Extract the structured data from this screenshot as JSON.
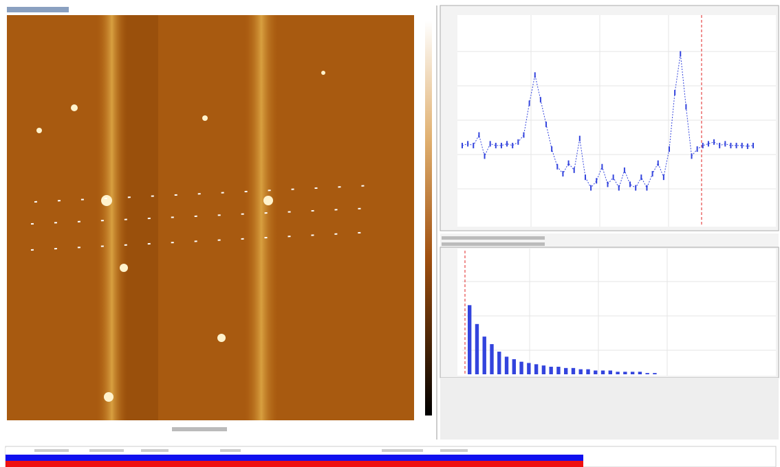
{
  "profile": {
    "type": "line",
    "color": "#3344dd",
    "ylim": [
      -2,
      4
    ],
    "values": [
      0.3,
      0.35,
      0.3,
      0.6,
      0.0,
      0.35,
      0.3,
      0.3,
      0.35,
      0.3,
      0.4,
      0.6,
      1.5,
      2.3,
      1.6,
      0.9,
      0.2,
      -0.3,
      -0.5,
      -0.2,
      -0.4,
      0.5,
      -0.6,
      -0.9,
      -0.7,
      -0.3,
      -0.8,
      -0.6,
      -0.9,
      -0.4,
      -0.8,
      -0.9,
      -0.6,
      -0.9,
      -0.5,
      -0.2,
      -0.6,
      0.2,
      1.8,
      2.9,
      1.4,
      0.0,
      0.2,
      0.3,
      0.35,
      0.4,
      0.3,
      0.35,
      0.3,
      0.3,
      0.3,
      0.28,
      0.3
    ]
  },
  "histogram": {
    "type": "bar",
    "color": "#3344dd",
    "ylim": [
      0,
      100
    ],
    "values": [
      55,
      40,
      30,
      24,
      18,
      14,
      12,
      10,
      9,
      8,
      7,
      6,
      6,
      5,
      5,
      4,
      4,
      3,
      3,
      3,
      2,
      2,
      2,
      2,
      1,
      1
    ]
  }
}
